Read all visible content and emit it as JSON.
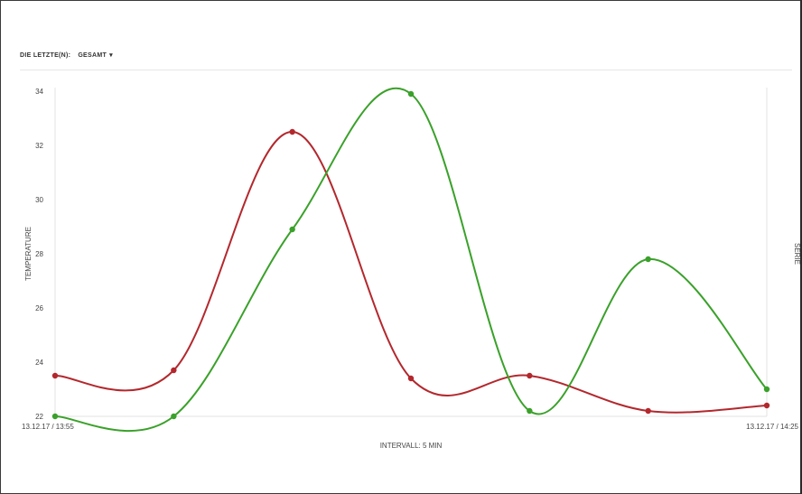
{
  "toolbar": {
    "label": "DIE LETZTE(N):",
    "range": "GESAMT"
  },
  "chart_data": {
    "type": "line",
    "x": [
      "13.12.17 / 13:55",
      "",
      "",
      "",
      "",
      "",
      "13.12.17 / 14:25"
    ],
    "xlabel": "INTERVALL: 5 MIN",
    "ylabel": "TEMPERATURE",
    "y2label": "SERIE",
    "ylim": [
      22,
      34
    ],
    "yticks": [
      22,
      24,
      26,
      28,
      30,
      32,
      34
    ],
    "grid": false,
    "legend": "none",
    "series": [
      {
        "color": "#b3282d",
        "values": [
          23.5,
          23.7,
          32.5,
          23.4,
          23.5,
          22.2,
          22.4
        ]
      },
      {
        "color": "#3aa12a",
        "values": [
          22.0,
          22.0,
          28.9,
          33.9,
          22.2,
          27.8,
          23.0
        ]
      }
    ]
  }
}
